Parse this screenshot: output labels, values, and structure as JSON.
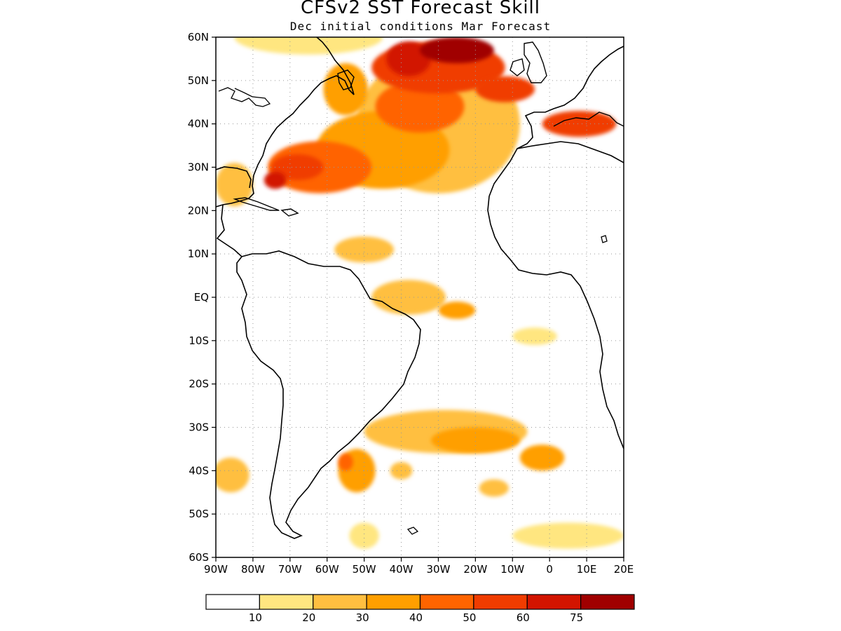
{
  "title": "CFSv2 SST Forecast Skill",
  "subtitle": "Dec initial conditions  Mar Forecast",
  "map": {
    "lon_range": [
      -90,
      20
    ],
    "lat_range": [
      -60,
      60
    ],
    "lat_labels": [
      "60S",
      "50S",
      "40S",
      "30S",
      "20S",
      "10S",
      "EQ",
      "10N",
      "20N",
      "30N",
      "40N",
      "50N",
      "60N"
    ],
    "lon_labels": [
      "90W",
      "80W",
      "70W",
      "60W",
      "50W",
      "40W",
      "30W",
      "20W",
      "10W",
      "0",
      "10E",
      "20E"
    ],
    "grid": true
  },
  "colorbar": {
    "colors": [
      "#ffffff",
      "#ffe680",
      "#ffbf40",
      "#ff9f00",
      "#ff6400",
      "#f03c00",
      "#d21400",
      "#a00000"
    ],
    "labels": [
      "10",
      "20",
      "30",
      "40",
      "50",
      "60",
      "75"
    ]
  },
  "skill_regions": [
    {
      "lon": -30,
      "lat": 53,
      "rx": 18,
      "ry": 6,
      "level": 5
    },
    {
      "lon": -38,
      "lat": 55,
      "rx": 6,
      "ry": 4,
      "level": 6
    },
    {
      "lon": -25,
      "lat": 57,
      "rx": 10,
      "ry": 3,
      "level": 7
    },
    {
      "lon": -12,
      "lat": 48,
      "rx": 8,
      "ry": 3,
      "level": 5
    },
    {
      "lon": -35,
      "lat": 44,
      "rx": 12,
      "ry": 6,
      "level": 4
    },
    {
      "lon": -62,
      "lat": 30,
      "rx": 14,
      "ry": 6,
      "level": 4
    },
    {
      "lon": -68,
      "lat": 30,
      "rx": 7,
      "ry": 3,
      "level": 5
    },
    {
      "lon": -74,
      "lat": 27,
      "rx": 3,
      "ry": 2,
      "level": 6
    },
    {
      "lon": -45,
      "lat": 34,
      "rx": 18,
      "ry": 9,
      "level": 3
    },
    {
      "lon": -55,
      "lat": 48,
      "rx": 6,
      "ry": 6,
      "level": 3
    },
    {
      "lon": -30,
      "lat": 40,
      "rx": 22,
      "ry": 16,
      "level": 2
    },
    {
      "lon": -65,
      "lat": 60,
      "rx": 20,
      "ry": 4,
      "level": 1
    },
    {
      "lon": -85,
      "lat": 26,
      "rx": 5,
      "ry": 5,
      "level": 2
    },
    {
      "lon": -50,
      "lat": 11,
      "rx": 8,
      "ry": 3,
      "level": 2
    },
    {
      "lon": -38,
      "lat": 0,
      "rx": 10,
      "ry": 4,
      "level": 2
    },
    {
      "lon": -25,
      "lat": -3,
      "rx": 5,
      "ry": 2,
      "level": 3
    },
    {
      "lon": -4,
      "lat": -9,
      "rx": 6,
      "ry": 2,
      "level": 1
    },
    {
      "lon": -28,
      "lat": -31,
      "rx": 22,
      "ry": 5,
      "level": 2
    },
    {
      "lon": -20,
      "lat": -33,
      "rx": 12,
      "ry": 3,
      "level": 3
    },
    {
      "lon": -2,
      "lat": -37,
      "rx": 6,
      "ry": 3,
      "level": 3
    },
    {
      "lon": -52,
      "lat": -40,
      "rx": 5,
      "ry": 5,
      "level": 3
    },
    {
      "lon": -55,
      "lat": -38,
      "rx": 2,
      "ry": 2,
      "level": 4
    },
    {
      "lon": -86,
      "lat": -41,
      "rx": 5,
      "ry": 4,
      "level": 2
    },
    {
      "lon": -40,
      "lat": -40,
      "rx": 3,
      "ry": 2,
      "level": 2
    },
    {
      "lon": -15,
      "lat": -44,
      "rx": 4,
      "ry": 2,
      "level": 2
    },
    {
      "lon": 5,
      "lat": -55,
      "rx": 15,
      "ry": 3,
      "level": 1
    },
    {
      "lon": 8,
      "lat": 40,
      "rx": 10,
      "ry": 3,
      "level": 5
    },
    {
      "lon": -50,
      "lat": -55,
      "rx": 4,
      "ry": 3,
      "level": 1
    }
  ]
}
